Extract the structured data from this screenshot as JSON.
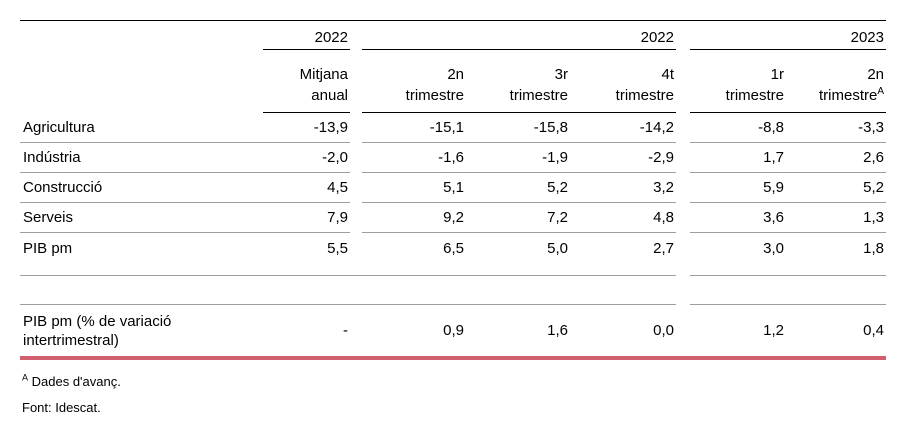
{
  "table": {
    "groups": [
      {
        "year": "2022"
      },
      {
        "year": "2022"
      },
      {
        "year": "2023"
      }
    ],
    "columns": [
      {
        "line1": "Mitjana",
        "line2": "anual"
      },
      {
        "line1": "2n",
        "line2": "trimestre"
      },
      {
        "line1": "3r",
        "line2": "trimestre"
      },
      {
        "line1": "4t",
        "line2": "trimestre"
      },
      {
        "line1": "1r",
        "line2": "trimestre"
      },
      {
        "line1": "2n",
        "line2": "trimestre",
        "sup": "A"
      }
    ],
    "rows": [
      {
        "label": "Agricultura",
        "values": [
          "-13,9",
          "-15,1",
          "-15,8",
          "-14,2",
          "-8,8",
          "-3,3"
        ]
      },
      {
        "label": "Indústria",
        "values": [
          "-2,0",
          "-1,6",
          "-1,9",
          "-2,9",
          "1,7",
          "2,6"
        ]
      },
      {
        "label": "Construcció",
        "values": [
          "4,5",
          "5,1",
          "5,2",
          "3,2",
          "5,9",
          "5,2"
        ]
      },
      {
        "label": "Serveis",
        "values": [
          "7,9",
          "9,2",
          "7,2",
          "4,8",
          "3,6",
          "1,3"
        ]
      },
      {
        "label": "PIB pm",
        "values": [
          "5,5",
          "6,5",
          "5,0",
          "2,7",
          "3,0",
          "1,8"
        ]
      }
    ],
    "extra_row": {
      "label_line1": "PIB pm (% de variació",
      "label_line2": "intertrimestral)",
      "values": [
        "-",
        "0,9",
        "1,6",
        "0,0",
        "1,2",
        "0,4"
      ]
    }
  },
  "footnotes": {
    "marker": "A",
    "note": "Dades d'avanç.",
    "source": "Font: Idescat."
  },
  "colors": {
    "accent_rule": "#d25f6e",
    "row_separator": "#9e9e9e",
    "header_line": "#000000"
  },
  "chart_data": {
    "type": "table",
    "title": "",
    "column_groups": [
      {
        "label": "2022",
        "columns": [
          "Mitjana anual"
        ]
      },
      {
        "label": "2022",
        "columns": [
          "2n trimestre",
          "3r trimestre",
          "4t trimestre"
        ]
      },
      {
        "label": "2023",
        "columns": [
          "1r trimestre",
          "2n trimestre (A)"
        ]
      }
    ],
    "columns": [
      "Mitjana anual 2022",
      "2n trimestre 2022",
      "3r trimestre 2022",
      "4t trimestre 2022",
      "1r trimestre 2023",
      "2n trimestre 2023"
    ],
    "rows": [
      {
        "name": "Agricultura",
        "values": [
          -13.9,
          -15.1,
          -15.8,
          -14.2,
          -8.8,
          -3.3
        ]
      },
      {
        "name": "Indústria",
        "values": [
          -2.0,
          -1.6,
          -1.9,
          -2.9,
          1.7,
          2.6
        ]
      },
      {
        "name": "Construcció",
        "values": [
          4.5,
          5.1,
          5.2,
          3.2,
          5.9,
          5.2
        ]
      },
      {
        "name": "Serveis",
        "values": [
          7.9,
          9.2,
          7.2,
          4.8,
          3.6,
          1.3
        ]
      },
      {
        "name": "PIB pm",
        "values": [
          5.5,
          6.5,
          5.0,
          2.7,
          3.0,
          1.8
        ]
      },
      {
        "name": "PIB pm (% de variació intertrimestral)",
        "values": [
          null,
          0.9,
          1.6,
          0.0,
          1.2,
          0.4
        ]
      }
    ],
    "notes": [
      "A: Dades d'avanç.",
      "Font: Idescat."
    ]
  }
}
